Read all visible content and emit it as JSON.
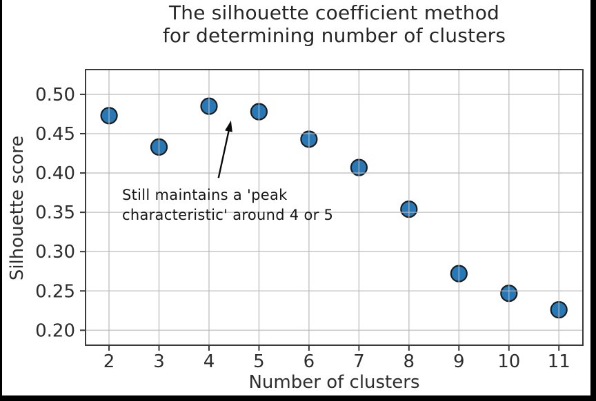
{
  "figure": {
    "title_line1": "The silhouette coefficient method",
    "title_line2": "for determining number of clusters",
    "xlabel": "Number of clusters",
    "ylabel": "Silhouette score"
  },
  "annotation": {
    "line1": "Still maintains a 'peak",
    "line2": "characteristic' around 4 or 5"
  },
  "chart_data": {
    "type": "scatter",
    "title": "The silhouette coefficient method for determining number of clusters",
    "xlabel": "Number of clusters",
    "ylabel": "Silhouette score",
    "x": [
      2,
      3,
      4,
      5,
      6,
      7,
      8,
      9,
      10,
      11
    ],
    "y": [
      0.473,
      0.433,
      0.485,
      0.478,
      0.443,
      0.407,
      0.354,
      0.272,
      0.247,
      0.226
    ],
    "x_ticks": [
      2,
      3,
      4,
      5,
      6,
      7,
      8,
      9,
      10,
      11
    ],
    "x_tick_labels": [
      "2",
      "3",
      "4",
      "5",
      "6",
      "7",
      "8",
      "9",
      "10",
      "11"
    ],
    "y_ticks": [
      0.2,
      0.25,
      0.3,
      0.35,
      0.4,
      0.45,
      0.5
    ],
    "y_tick_labels": [
      "0.20",
      "0.25",
      "0.30",
      "0.35",
      "0.40",
      "0.45",
      "0.50"
    ],
    "xlim": [
      1.53,
      11.48
    ],
    "ylim": [
      0.181,
      0.5315
    ],
    "grid": true,
    "legend": "none",
    "annotation": {
      "text": "Still maintains a 'peak characteristic' around 4 or 5",
      "text_xy": [
        2.26,
        0.3825
      ],
      "arrow_tail_xy": [
        4.19,
        0.3937
      ],
      "arrow_tip_xy": [
        4.44,
        0.4667
      ]
    },
    "colors": {
      "marker_fill": "#2679b6",
      "marker_edge": "#1b1b1b",
      "grid": "#b8b8bc",
      "spine": "#3a3a3a",
      "text": "#2e2e2e",
      "arrow": "#0b0b0b",
      "frame_border": "#000000"
    }
  }
}
